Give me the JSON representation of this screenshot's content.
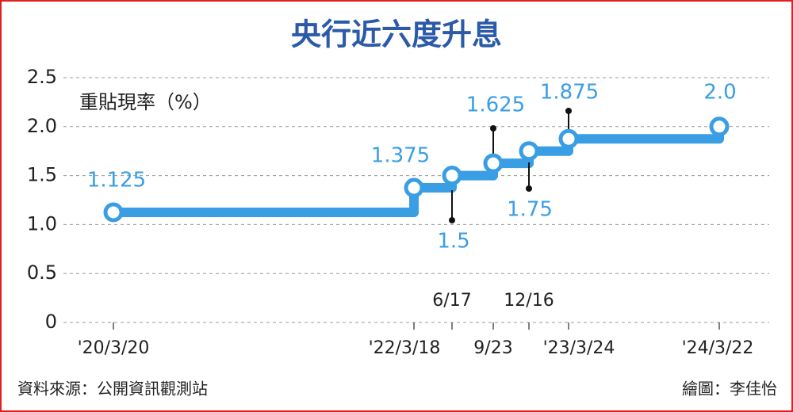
{
  "chart_data": {
    "type": "step",
    "title": "央行近六度升息",
    "y_label": "重貼現率（%）",
    "source": "資料來源：公開資訊觀測站",
    "credit": "繪圖：李佳怡",
    "categories": [
      "'20/3/20",
      "'22/3/18",
      "6/17",
      "9/23",
      "12/16",
      "'23/3/24",
      "'24/3/22"
    ],
    "values": [
      1.125,
      1.375,
      1.5,
      1.625,
      1.75,
      1.875,
      2
    ],
    "value_labels": [
      "1.125",
      "1.375",
      "1.5",
      "1.625",
      "1.75",
      "1.875",
      "2.0"
    ],
    "color": "#3a9ee4",
    "ylim": [
      0,
      2.5
    ],
    "yticks": [
      0,
      0.5,
      {
        "value": 1,
        "label": "1.0"
      },
      1.5,
      {
        "value": 2,
        "label": "2.0"
      },
      2.5
    ],
    "grid": true
  }
}
